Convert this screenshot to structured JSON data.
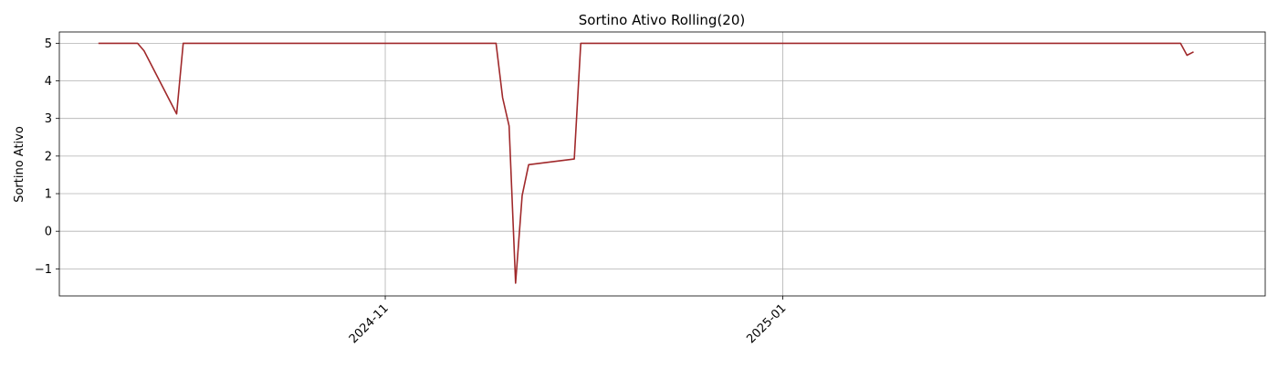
{
  "chart_data": {
    "type": "line",
    "title": "Sortino Ativo Rolling(20)",
    "xlabel": "",
    "ylabel": "Sortino Ativo",
    "x_axis_type": "date",
    "xlim": [
      "2024-09-12",
      "2025-03-16"
    ],
    "ylim": [
      -1.72,
      5.3
    ],
    "grid": true,
    "yticks": [
      {
        "value": -1,
        "label": "−1"
      },
      {
        "value": 0,
        "label": "0"
      },
      {
        "value": 1,
        "label": "1"
      },
      {
        "value": 2,
        "label": "2"
      },
      {
        "value": 3,
        "label": "3"
      },
      {
        "value": 4,
        "label": "4"
      },
      {
        "value": 5,
        "label": "5"
      }
    ],
    "xticks": [
      {
        "value": "2024-11-01",
        "label": "2024-11"
      },
      {
        "value": "2025-01-01",
        "label": "2025-01"
      }
    ],
    "series": [
      {
        "color": "#a0292b",
        "x": [
          "2024-09-18",
          "2024-09-24",
          "2024-09-25",
          "2024-09-30",
          "2024-10-01",
          "2024-11-18",
          "2024-11-19",
          "2024-11-20",
          "2024-11-21",
          "2024-11-22",
          "2024-11-23",
          "2024-11-30",
          "2024-12-01",
          "2025-03-03",
          "2025-03-04",
          "2025-03-05"
        ],
        "y": [
          5.0,
          5.0,
          4.8,
          3.12,
          5.0,
          5.0,
          3.55,
          2.8,
          -1.38,
          0.95,
          1.77,
          1.92,
          5.0,
          5.0,
          4.68,
          4.77
        ]
      }
    ]
  }
}
